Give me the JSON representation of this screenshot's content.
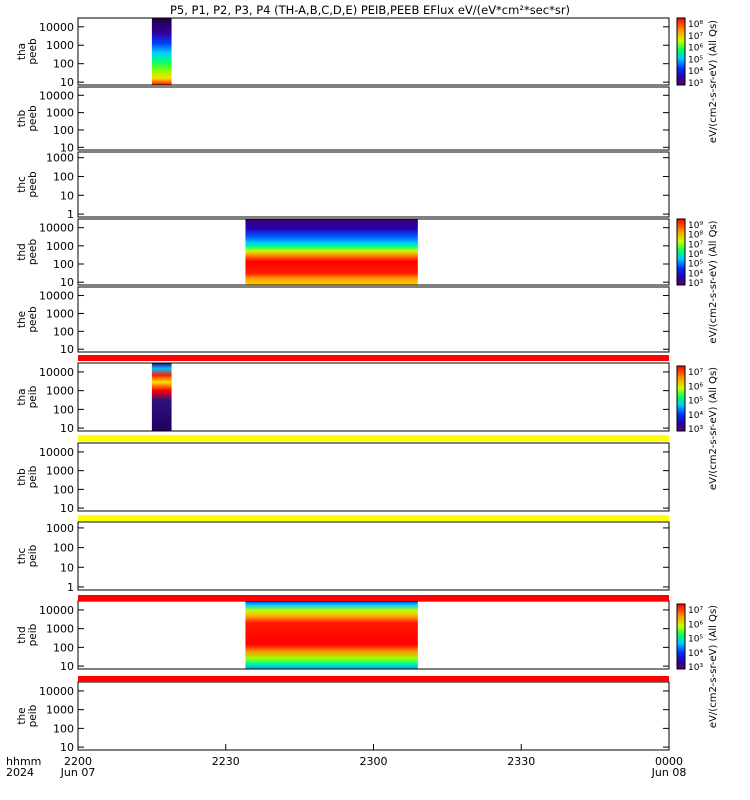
{
  "title": "P5, P1, P2, P3, P4 (TH-A,B,C,D,E) PEIB,PEEB EFlux eV/(eV*cm²*sec*sr)",
  "x_axis": {
    "tick_labels": [
      "2200",
      "2230",
      "2300",
      "2330",
      "0000"
    ],
    "date_labels": [
      "Jun 07",
      "Jun 08"
    ],
    "format_label": "hhmm",
    "year_label": "2024"
  },
  "colorbars": [
    {
      "label": "eV/(cm2-s-sr-eV) (All Qs)",
      "tick_labels": [
        "10⁸",
        "10⁷",
        "10⁶",
        "10⁵",
        "10⁴",
        "10³"
      ]
    },
    {
      "label": "eV/(cm2-s-sr-eV) (All Qs)",
      "tick_labels": [
        "10⁹",
        "10⁸",
        "10⁷",
        "10⁶",
        "10⁵",
        "10⁴",
        "10³"
      ]
    },
    {
      "label": "eV/(cm2-s-sr-eV) (All Qs)",
      "tick_labels": [
        "10⁷",
        "10⁶",
        "10⁵",
        "10⁴",
        "10³"
      ]
    },
    {
      "label": "eV/(cm2-s-sr-eV) (All Qs)",
      "tick_labels": [
        "10⁷",
        "10⁶",
        "10⁵",
        "10⁴",
        "10³"
      ]
    }
  ],
  "chart_data": {
    "type": "heatmap",
    "x_unit": "UT (hhmm)",
    "x_range": [
      "2024-06-07 22:00",
      "2024-06-08 00:00"
    ],
    "y_scale": "log",
    "panels": [
      {
        "ylabel": [
          "tha",
          "peeb"
        ],
        "yticks": [
          "10000",
          "1000",
          "100",
          "10"
        ],
        "ylim": [
          7,
          30000
        ],
        "data_spans": [
          {
            "start": "22:15",
            "end": "22:19"
          }
        ]
      },
      {
        "ylabel": [
          "thb",
          "peeb"
        ],
        "yticks": [
          "10000",
          "1000",
          "100",
          "10"
        ],
        "ylim": [
          7,
          30000
        ],
        "data_spans": []
      },
      {
        "ylabel": [
          "thc",
          "peeb"
        ],
        "yticks": [
          "1000",
          "100",
          "10",
          "1"
        ],
        "ylim": [
          0.7,
          2000
        ],
        "data_spans": []
      },
      {
        "ylabel": [
          "thd",
          "peeb"
        ],
        "yticks": [
          "10000",
          "1000",
          "100",
          "10"
        ],
        "ylim": [
          7,
          30000
        ],
        "data_spans": [
          {
            "start": "22:34",
            "end": "23:09"
          }
        ]
      },
      {
        "ylabel": [
          "the",
          "peeb"
        ],
        "yticks": [
          "10000",
          "1000",
          "100",
          "10"
        ],
        "ylim": [
          7,
          30000
        ],
        "data_spans": []
      },
      {
        "ylabel": [
          "tha",
          "peib"
        ],
        "yticks": [
          "10000",
          "1000",
          "100",
          "10"
        ],
        "ylim": [
          7,
          30000
        ],
        "data_spans": [
          {
            "start": "22:15",
            "end": "22:19"
          }
        ]
      },
      {
        "ylabel": [
          "thb",
          "peib"
        ],
        "yticks": [
          "10000",
          "1000",
          "100",
          "10"
        ],
        "ylim": [
          7,
          30000
        ],
        "data_spans": []
      },
      {
        "ylabel": [
          "thc",
          "peib"
        ],
        "yticks": [
          "1000",
          "100",
          "10",
          "1"
        ],
        "ylim": [
          0.7,
          2000
        ],
        "data_spans": []
      },
      {
        "ylabel": [
          "thd",
          "peib"
        ],
        "yticks": [
          "10000",
          "1000",
          "100",
          "10"
        ],
        "ylim": [
          7,
          30000
        ],
        "data_spans": [
          {
            "start": "22:34",
            "end": "23:09"
          }
        ]
      },
      {
        "ylabel": [
          "the",
          "peib"
        ],
        "yticks": [
          "10000",
          "1000",
          "100",
          "10"
        ],
        "ylim": [
          7,
          30000
        ],
        "data_spans": []
      }
    ],
    "flag_bars": [
      {
        "after_panel": 5,
        "color": "#ff0000"
      },
      {
        "after_panel": 6,
        "color": "#ffff00"
      },
      {
        "after_panel": 7,
        "color": "#ffff00"
      },
      {
        "after_panel": 8,
        "color": "#ff0000"
      },
      {
        "after_panel": 9,
        "color": "#ff0000"
      }
    ]
  }
}
